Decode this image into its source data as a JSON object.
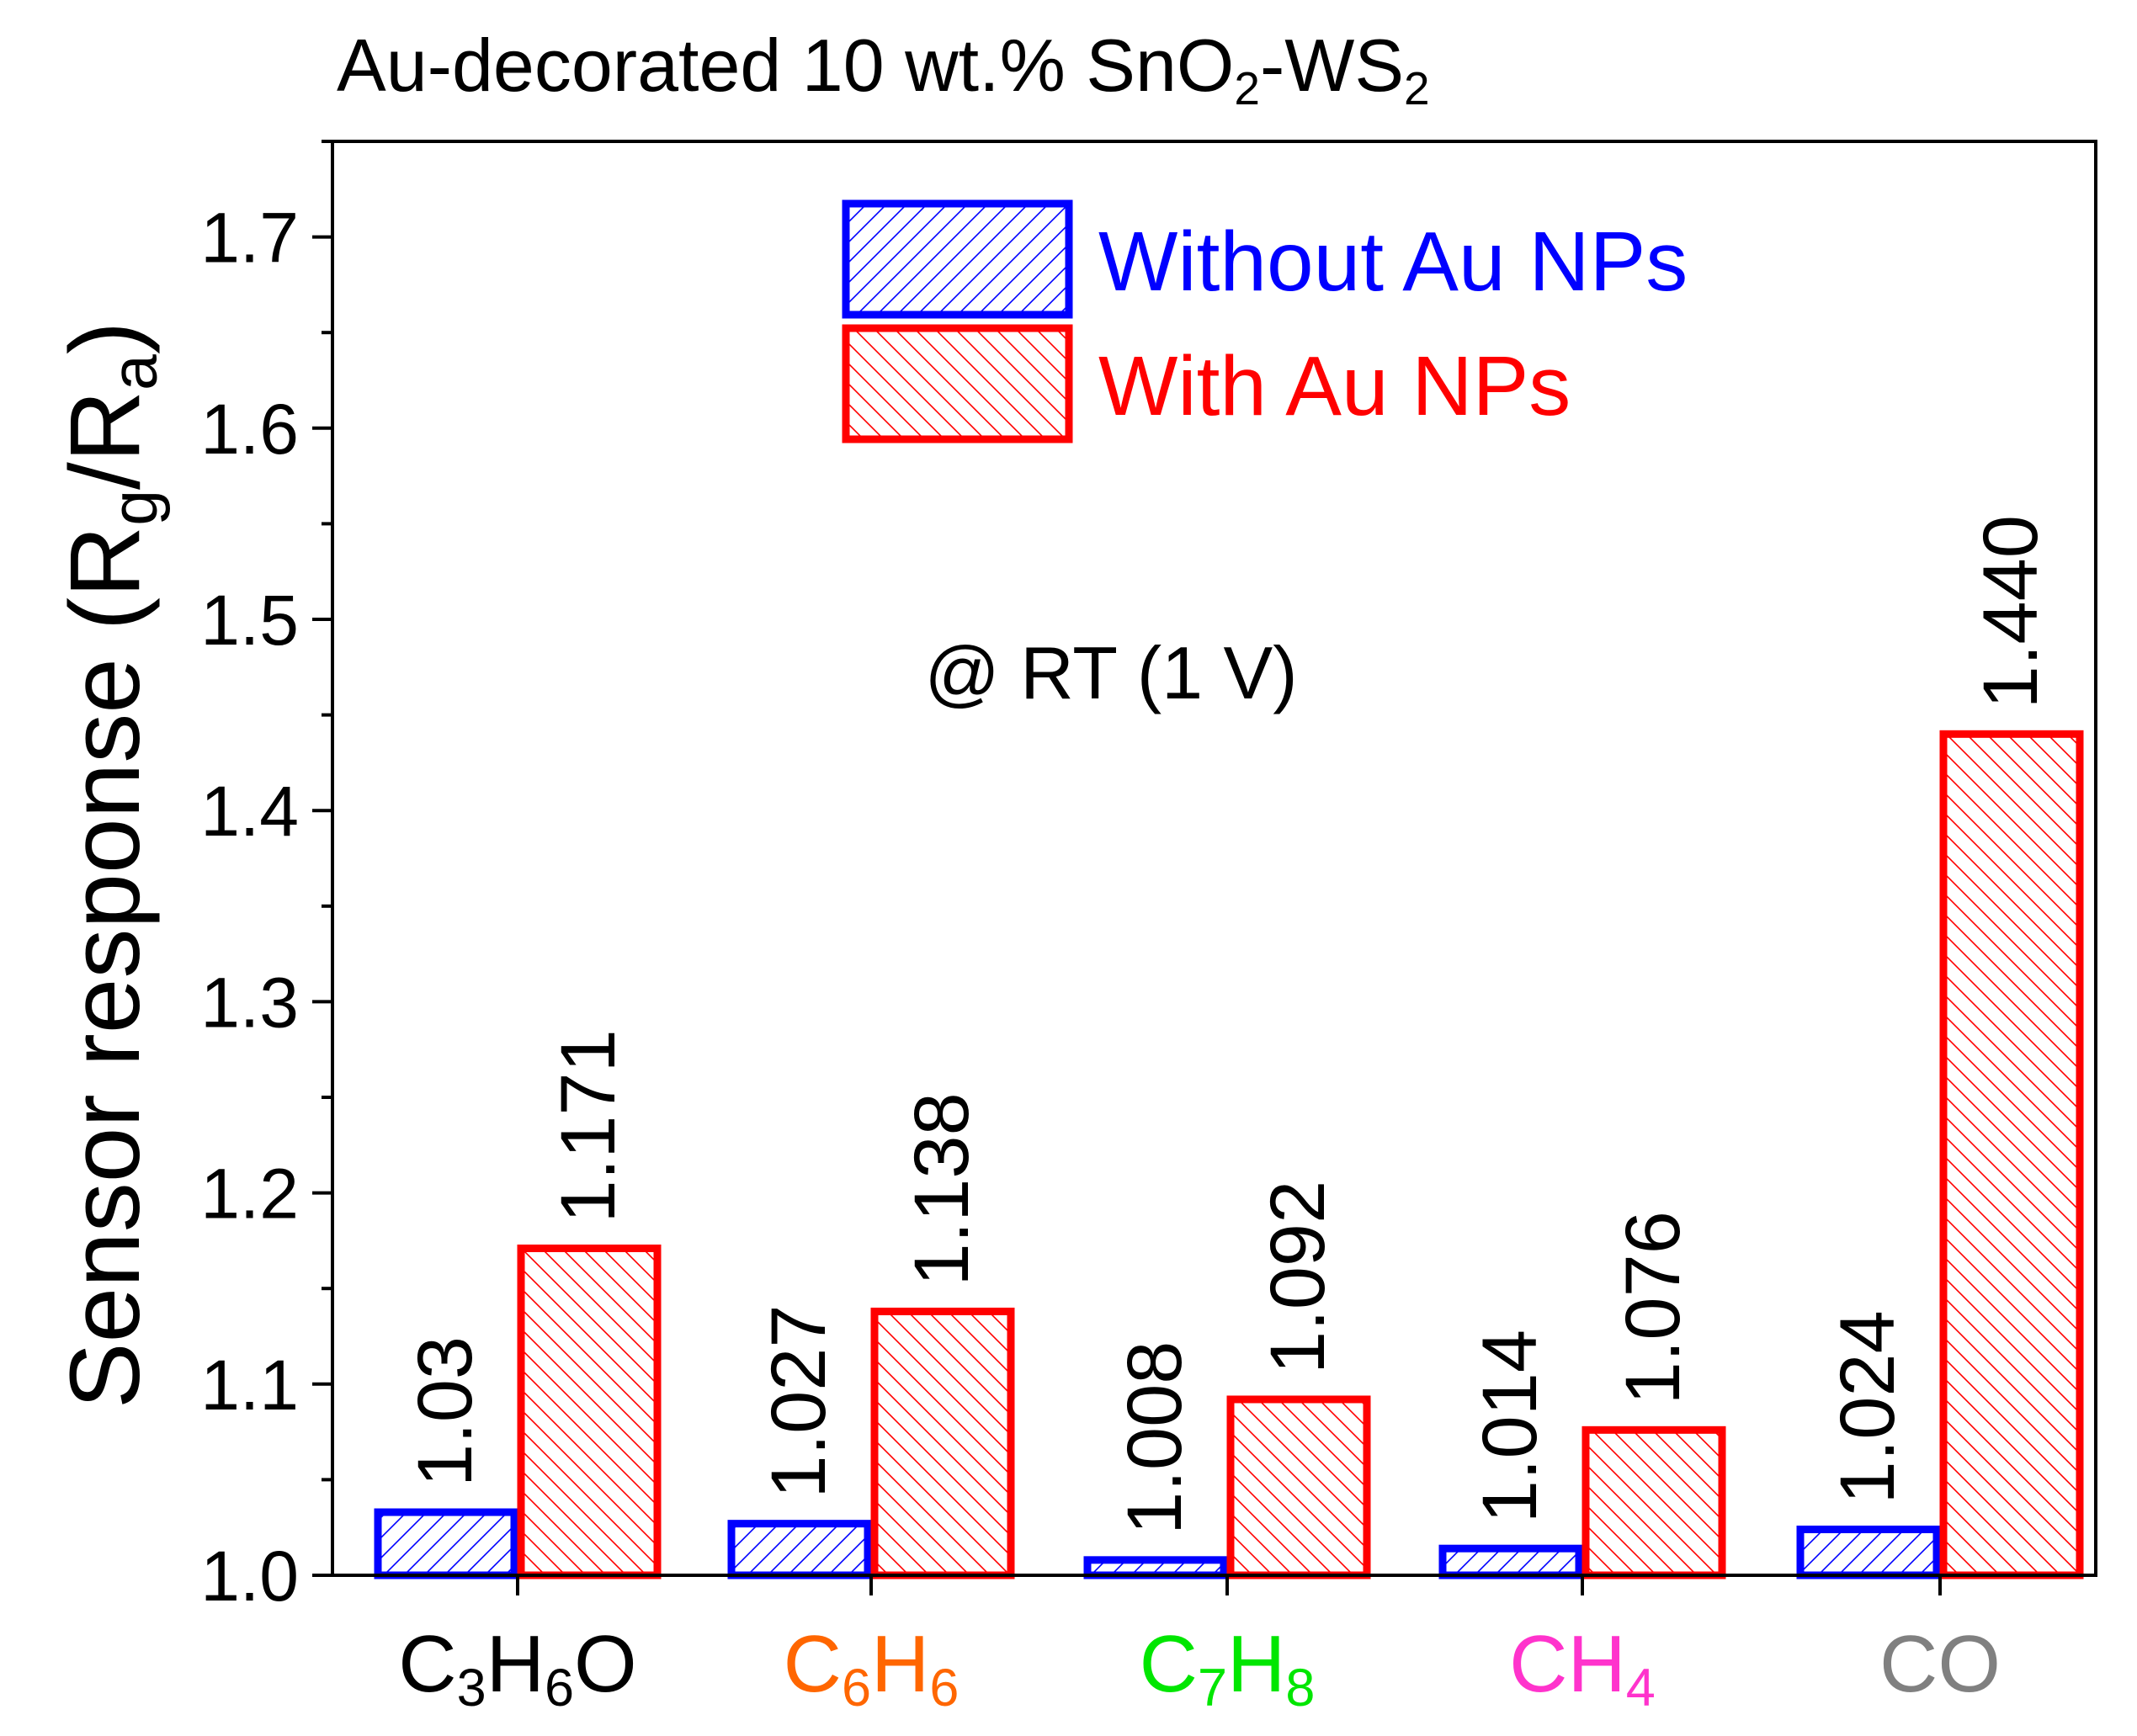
{
  "chart_data": {
    "type": "bar",
    "title_parts": [
      "Au-decorated 10 wt.% SnO",
      "2",
      "-WS",
      "2"
    ],
    "ylabel_parts": [
      "Sensor response (R",
      "g",
      "/R",
      "a",
      ")"
    ],
    "annotation": "@ RT (1 V)",
    "ylim": [
      1.0,
      1.75
    ],
    "yticks": [
      "1.0",
      "1.1",
      "1.2",
      "1.3",
      "1.4",
      "1.5",
      "1.6",
      "1.7"
    ],
    "categories": [
      {
        "parts": [
          "C",
          "3",
          "H",
          "6",
          "O"
        ],
        "color": "#000000"
      },
      {
        "parts": [
          "C",
          "6",
          "H",
          "6"
        ],
        "color": "#ff6600"
      },
      {
        "parts": [
          "C",
          "7",
          "H",
          "8"
        ],
        "color": "#00e600"
      },
      {
        "parts": [
          "CH",
          "4"
        ],
        "color": "#ff33cc"
      },
      {
        "parts": [
          "CO"
        ],
        "color": "#808080"
      }
    ],
    "series": [
      {
        "name": "Without Au NPs",
        "color": "#0000ff",
        "values": [
          1.033,
          1.027,
          1.008,
          1.014,
          1.024
        ],
        "labels": [
          "1.03",
          "1.027",
          "1.008",
          "1.014",
          "1.024"
        ]
      },
      {
        "name": "With Au NPs",
        "color": "#ff0000",
        "values": [
          1.171,
          1.138,
          1.092,
          1.076,
          1.44
        ],
        "labels": [
          "1.171",
          "1.138",
          "1.092",
          "1.076",
          "1.440"
        ]
      }
    ],
    "legend_position": "top-center"
  }
}
